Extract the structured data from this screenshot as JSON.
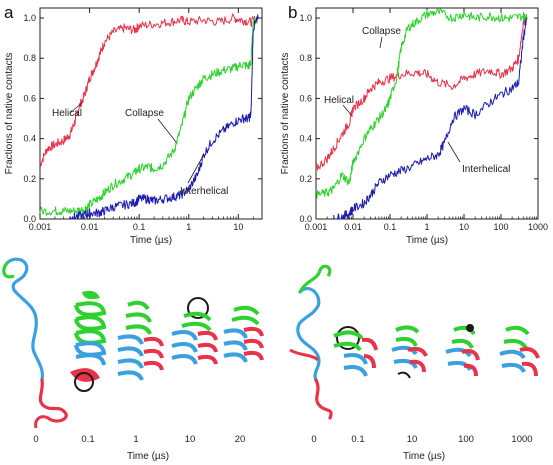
{
  "figure": {
    "colors": {
      "helical": "#e8334a",
      "collapse": "#2fd12f",
      "interhelical": "#1c1cb0",
      "struct_blue": "#3aa0e0",
      "struct_dark": "#1a1a1a"
    }
  },
  "chart_data": [
    {
      "panel": "a",
      "type": "line",
      "xscale": "log",
      "xlabel": "Time (µs)",
      "ylabel": "Fractions of native contacts",
      "xlim": [
        0.001,
        30
      ],
      "ylim": [
        0,
        1.05
      ],
      "xticks": [
        "0.001",
        "0.01",
        "0.1",
        "1",
        "10"
      ],
      "yticks": [
        "0.0",
        "0.2",
        "0.4",
        "0.6",
        "0.8",
        "1.0"
      ],
      "grid": false,
      "series": [
        {
          "name": "Helical",
          "color": "#e8334a",
          "x": [
            0.001,
            0.0014,
            0.002,
            0.003,
            0.004,
            0.005,
            0.006,
            0.008,
            0.01,
            0.013,
            0.016,
            0.02,
            0.03,
            0.05,
            0.08,
            0.1,
            0.2,
            0.4,
            0.7,
            1,
            2,
            4,
            8,
            12,
            18,
            25
          ],
          "y": [
            0.27,
            0.35,
            0.37,
            0.39,
            0.42,
            0.48,
            0.55,
            0.62,
            0.7,
            0.76,
            0.82,
            0.88,
            0.93,
            0.95,
            0.94,
            0.96,
            0.97,
            0.98,
            0.99,
            0.98,
            0.99,
            0.98,
            1.0,
            0.99,
            0.98,
            1.0
          ]
        },
        {
          "name": "Collapse",
          "color": "#2fd12f",
          "x": [
            0.001,
            0.002,
            0.003,
            0.005,
            0.008,
            0.01,
            0.015,
            0.02,
            0.03,
            0.05,
            0.08,
            0.1,
            0.15,
            0.2,
            0.3,
            0.5,
            0.7,
            1,
            1.5,
            2,
            3,
            5,
            8,
            12,
            16,
            18,
            20,
            25
          ],
          "y": [
            0.04,
            0.04,
            0.04,
            0.04,
            0.05,
            0.07,
            0.1,
            0.13,
            0.17,
            0.2,
            0.23,
            0.25,
            0.26,
            0.25,
            0.27,
            0.34,
            0.45,
            0.6,
            0.66,
            0.7,
            0.72,
            0.74,
            0.75,
            0.77,
            0.76,
            0.78,
            0.98,
            1.0
          ]
        },
        {
          "name": "Interhelical",
          "color": "#1c1cb0",
          "x": [
            0.004,
            0.005,
            0.008,
            0.01,
            0.015,
            0.02,
            0.03,
            0.05,
            0.08,
            0.1,
            0.15,
            0.2,
            0.3,
            0.5,
            0.7,
            1,
            1.5,
            2,
            3,
            5,
            8,
            12,
            16,
            18,
            20,
            25
          ],
          "y": [
            0.0,
            0.01,
            0.02,
            0.03,
            0.03,
            0.04,
            0.06,
            0.07,
            0.08,
            0.1,
            0.1,
            0.09,
            0.1,
            0.11,
            0.12,
            0.15,
            0.22,
            0.32,
            0.39,
            0.44,
            0.48,
            0.5,
            0.5,
            0.52,
            0.95,
            1.0
          ]
        }
      ],
      "annotations": [
        {
          "text": "Helical"
        },
        {
          "text": "Collapse"
        },
        {
          "text": "Interhelical"
        }
      ]
    },
    {
      "panel": "b",
      "type": "line",
      "xscale": "log",
      "xlabel": "Time (µs)",
      "ylabel": "Fractions of native contacts",
      "xlim": [
        0.001,
        1000
      ],
      "ylim": [
        0,
        1.05
      ],
      "xticks": [
        "0.001",
        "0.01",
        "0.1",
        "1",
        "10",
        "100",
        "1000"
      ],
      "yticks": [
        "0.0",
        "0.2",
        "0.4",
        "0.6",
        "0.8",
        "1.0"
      ],
      "grid": false,
      "series": [
        {
          "name": "Helical",
          "color": "#e8334a",
          "x": [
            0.001,
            0.002,
            0.003,
            0.005,
            0.008,
            0.01,
            0.02,
            0.03,
            0.05,
            0.1,
            0.2,
            0.5,
            1,
            2,
            5,
            10,
            20,
            50,
            100,
            200,
            300,
            400,
            500
          ],
          "y": [
            0.25,
            0.3,
            0.35,
            0.42,
            0.48,
            0.55,
            0.6,
            0.65,
            0.68,
            0.7,
            0.72,
            0.73,
            0.72,
            0.68,
            0.66,
            0.7,
            0.72,
            0.74,
            0.72,
            0.75,
            0.8,
            0.98,
            1.0
          ]
        },
        {
          "name": "Collapse",
          "color": "#2fd12f",
          "x": [
            0.001,
            0.002,
            0.003,
            0.005,
            0.008,
            0.01,
            0.02,
            0.03,
            0.05,
            0.08,
            0.1,
            0.15,
            0.2,
            0.3,
            0.5,
            1,
            2,
            5,
            10,
            20,
            50,
            100,
            200,
            400,
            500
          ],
          "y": [
            0.12,
            0.13,
            0.15,
            0.22,
            0.18,
            0.28,
            0.4,
            0.45,
            0.5,
            0.55,
            0.6,
            0.7,
            0.85,
            0.95,
            0.98,
            1.02,
            1.03,
            1.0,
            1.02,
            1.0,
            1.01,
            1.0,
            1.0,
            1.01,
            1.0
          ]
        },
        {
          "name": "Interhelical",
          "color": "#1c1cb0",
          "x": [
            0.003,
            0.005,
            0.008,
            0.01,
            0.02,
            0.03,
            0.05,
            0.1,
            0.2,
            0.5,
            1,
            2,
            3,
            5,
            10,
            20,
            50,
            100,
            200,
            300,
            400,
            500
          ],
          "y": [
            0.0,
            0.01,
            0.03,
            0.05,
            0.08,
            0.12,
            0.18,
            0.22,
            0.24,
            0.27,
            0.3,
            0.32,
            0.38,
            0.5,
            0.55,
            0.52,
            0.58,
            0.62,
            0.65,
            0.68,
            0.9,
            1.0
          ]
        }
      ],
      "annotations": [
        {
          "text": "Collapse"
        },
        {
          "text": "Helical"
        },
        {
          "text": "Interhelical"
        }
      ]
    }
  ],
  "panels": {
    "a": "a",
    "b": "b"
  },
  "structures": {
    "left": {
      "labels": [
        "0",
        "0.1",
        "1",
        "10",
        "20"
      ]
    },
    "right": {
      "labels": [
        "0",
        "0.1",
        "10",
        "100",
        "1000"
      ]
    },
    "xlabel_left": "Time (µs)",
    "xlabel_right": "Time (µs)"
  }
}
